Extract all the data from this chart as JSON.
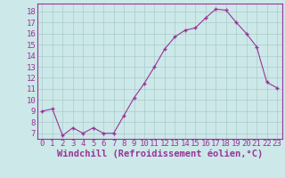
{
  "hours": [
    0,
    1,
    2,
    3,
    4,
    5,
    6,
    7,
    8,
    9,
    10,
    11,
    12,
    13,
    14,
    15,
    16,
    17,
    18,
    19,
    20,
    21,
    22,
    23
  ],
  "values": [
    9.0,
    9.2,
    6.8,
    7.5,
    7.0,
    7.5,
    7.0,
    7.0,
    8.6,
    10.2,
    11.5,
    13.0,
    14.6,
    15.7,
    16.3,
    16.5,
    17.4,
    18.2,
    18.1,
    17.0,
    16.0,
    14.8,
    11.6,
    11.1
  ],
  "line_color": "#993399",
  "marker": "+",
  "bg_color": "#cce8e8",
  "grid_color": "#aacccc",
  "axis_color": "#993399",
  "xlabel": "Windchill (Refroidissement éolien,°C)",
  "ylim": [
    6.5,
    18.7
  ],
  "xlim": [
    -0.5,
    23.5
  ],
  "yticks": [
    7,
    8,
    9,
    10,
    11,
    12,
    13,
    14,
    15,
    16,
    17,
    18
  ],
  "xticks": [
    0,
    1,
    2,
    3,
    4,
    5,
    6,
    7,
    8,
    9,
    10,
    11,
    12,
    13,
    14,
    15,
    16,
    17,
    18,
    19,
    20,
    21,
    22,
    23
  ],
  "tick_font_size": 6.5,
  "label_font_size": 7.5
}
